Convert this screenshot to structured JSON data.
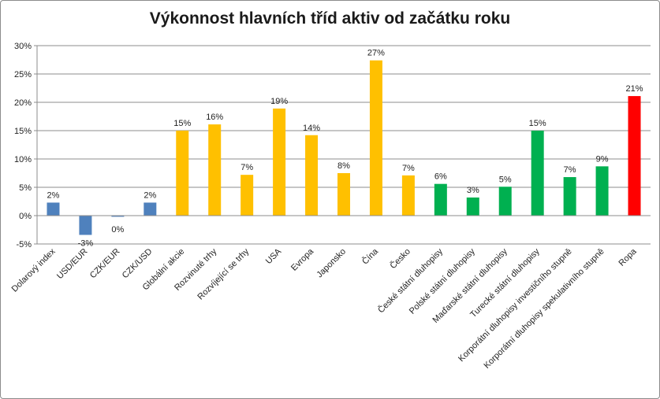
{
  "chart_data": {
    "type": "bar",
    "title": "Výkonnost hlavních tříd aktiv od začátku roku",
    "xlabel": "",
    "ylabel": "",
    "ylim": [
      -5,
      30
    ],
    "yticks": [
      "30%",
      "25%",
      "20%",
      "15%",
      "10%",
      "5%",
      "0%",
      "-5%"
    ],
    "ytick_values": [
      30,
      25,
      20,
      15,
      10,
      5,
      0,
      -5
    ],
    "grid": true,
    "legend": "none",
    "categories": [
      "Dolarový index",
      "USD/EUR",
      "CZK/EUR",
      "CZK/USD",
      "Globální akcie",
      "Rozvinuté trhy",
      "Rozvíjející se trhy",
      "USA",
      "Evropa",
      "Japonsko",
      "Čína",
      "Česko",
      "České státní dluhopisy",
      "Polské státní dluhopisy",
      "Maďarské státní dluhopisy",
      "Turecké státní dluhopisy",
      "Korporátní dluhopisy investičního stupně",
      "Korporátní dluhopisy spekulativního stupně",
      "Ropa"
    ],
    "values": [
      2.3,
      -3.4,
      -0.2,
      2.3,
      15.0,
      16.1,
      7.2,
      18.9,
      14.2,
      7.5,
      27.4,
      7.1,
      5.6,
      3.2,
      5.1,
      15.0,
      6.8,
      8.7,
      21.1
    ],
    "data_labels": [
      "2%",
      "-3%",
      "0%",
      "2%",
      "15%",
      "16%",
      "7%",
      "19%",
      "14%",
      "8%",
      "27%",
      "7%",
      "6%",
      "3%",
      "5%",
      "15%",
      "7%",
      "9%",
      "21%"
    ],
    "colors": [
      "#4f81bd",
      "#4f81bd",
      "#4f81bd",
      "#4f81bd",
      "#ffc000",
      "#ffc000",
      "#ffc000",
      "#ffc000",
      "#ffc000",
      "#ffc000",
      "#ffc000",
      "#ffc000",
      "#00b050",
      "#00b050",
      "#00b050",
      "#00b050",
      "#00b050",
      "#00b050",
      "#ff0000"
    ]
  }
}
